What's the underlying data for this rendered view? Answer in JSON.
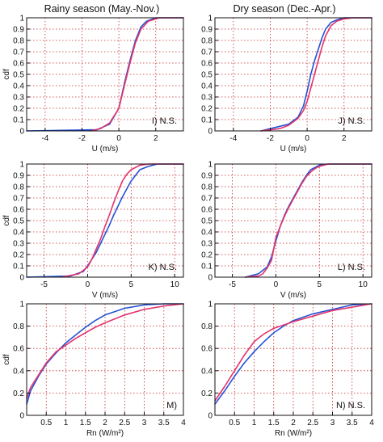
{
  "column_titles": [
    "Rainy season (May.-Nov.)",
    "Dry season (Dec.-Apr.)"
  ],
  "colors": {
    "blue_series": "#2452d6",
    "red_series": "#e2336b",
    "grid": "#c42a2a",
    "axis": "#111111"
  },
  "chart_data": [
    {
      "type": "line",
      "annotation": "I) N.S.",
      "xlabel": "U (m/s)",
      "ylabel": "cdf",
      "xlim": [
        -5,
        3.5
      ],
      "ylim": [
        0,
        1
      ],
      "xticks": [
        -4,
        -2,
        0,
        2
      ],
      "yticks": [
        0,
        0.1,
        0.2,
        0.3,
        0.4,
        0.5,
        0.6,
        0.7,
        0.8,
        0.9,
        1
      ],
      "grid": true,
      "series": [
        {
          "color": "blue",
          "x": [
            -5,
            -1.2,
            -0.5,
            0,
            0.3,
            0.6,
            0.9,
            1.2,
            1.5,
            2,
            3.5
          ],
          "y": [
            0,
            0.01,
            0.06,
            0.2,
            0.42,
            0.62,
            0.8,
            0.92,
            0.97,
            1,
            1
          ]
        },
        {
          "color": "red",
          "x": [
            -1.5,
            -1,
            -0.5,
            0,
            0.3,
            0.6,
            0.9,
            1.2,
            1.6,
            2.2,
            3.5
          ],
          "y": [
            0,
            0.02,
            0.07,
            0.2,
            0.4,
            0.6,
            0.78,
            0.9,
            0.97,
            1,
            1
          ]
        }
      ]
    },
    {
      "type": "line",
      "annotation": "J) N.S.",
      "xlabel": "U (m/s)",
      "ylabel": "",
      "xlim": [
        -5,
        3.5
      ],
      "ylim": [
        0,
        1
      ],
      "xticks": [
        -4,
        -2,
        0,
        2
      ],
      "yticks": [
        0,
        0.1,
        0.2,
        0.3,
        0.4,
        0.5,
        0.6,
        0.7,
        0.8,
        0.9,
        1
      ],
      "grid": true,
      "series": [
        {
          "color": "blue",
          "x": [
            -2.5,
            -2,
            -1,
            -0.5,
            -0.2,
            0,
            0.2,
            0.4,
            0.6,
            0.8,
            1,
            1.3,
            1.6,
            2,
            2.5,
            3.5
          ],
          "y": [
            0,
            0.02,
            0.06,
            0.12,
            0.22,
            0.35,
            0.5,
            0.62,
            0.72,
            0.82,
            0.9,
            0.96,
            0.98,
            1,
            1,
            1
          ]
        },
        {
          "color": "red",
          "x": [
            -2.5,
            -1.5,
            -1,
            -0.5,
            -0.2,
            0,
            0.2,
            0.4,
            0.6,
            0.8,
            1,
            1.3,
            1.6,
            2,
            2.5,
            3.5
          ],
          "y": [
            0,
            0.02,
            0.05,
            0.11,
            0.18,
            0.26,
            0.38,
            0.5,
            0.62,
            0.74,
            0.84,
            0.93,
            0.97,
            0.99,
            1,
            1
          ]
        }
      ]
    },
    {
      "type": "line",
      "annotation": "K) N.S.",
      "xlabel": "V (m/s)",
      "ylabel": "cdf",
      "xlim": [
        -7,
        11
      ],
      "ylim": [
        0,
        1
      ],
      "xticks": [
        -5,
        0,
        5,
        10
      ],
      "yticks": [
        0,
        0.1,
        0.2,
        0.3,
        0.4,
        0.5,
        0.6,
        0.7,
        0.8,
        0.9,
        1
      ],
      "grid": true,
      "series": [
        {
          "color": "blue",
          "x": [
            -7,
            -2,
            -0.5,
            0,
            0.5,
            1,
            1.5,
            2,
            2.5,
            3,
            3.5,
            4,
            4.5,
            5,
            5.5,
            6,
            7,
            8,
            11
          ],
          "y": [
            0,
            0.01,
            0.05,
            0.1,
            0.16,
            0.22,
            0.3,
            0.38,
            0.46,
            0.55,
            0.63,
            0.71,
            0.78,
            0.85,
            0.9,
            0.95,
            0.98,
            1,
            1
          ]
        },
        {
          "color": "red",
          "x": [
            -3,
            -1,
            0,
            0.5,
            1,
            1.5,
            2,
            2.5,
            3,
            3.5,
            4,
            4.5,
            5,
            6,
            7,
            11
          ],
          "y": [
            0,
            0.03,
            0.09,
            0.16,
            0.25,
            0.34,
            0.45,
            0.55,
            0.66,
            0.76,
            0.85,
            0.91,
            0.95,
            0.99,
            1,
            1
          ]
        }
      ]
    },
    {
      "type": "line",
      "annotation": "L) N.S.",
      "xlabel": "V (m/s)",
      "ylabel": "",
      "xlim": [
        -7,
        11
      ],
      "ylim": [
        0,
        1
      ],
      "xticks": [
        -5,
        0,
        5,
        10
      ],
      "yticks": [
        0,
        0.1,
        0.2,
        0.3,
        0.4,
        0.5,
        0.6,
        0.7,
        0.8,
        0.9,
        1
      ],
      "grid": true,
      "series": [
        {
          "color": "blue",
          "x": [
            -3.5,
            -2,
            -1,
            -0.5,
            0,
            0.5,
            1,
            1.5,
            2,
            2.5,
            3,
            3.5,
            4,
            5,
            6,
            11
          ],
          "y": [
            0,
            0.03,
            0.09,
            0.18,
            0.32,
            0.45,
            0.55,
            0.63,
            0.7,
            0.77,
            0.84,
            0.9,
            0.95,
            0.99,
            1,
            1
          ]
        },
        {
          "color": "red",
          "x": [
            -3.5,
            -2,
            -1.5,
            -1,
            -0.5,
            0,
            0.5,
            1,
            1.5,
            2,
            2.5,
            3,
            3.5,
            4,
            4.5,
            5,
            6,
            11
          ],
          "y": [
            0,
            0.01,
            0.03,
            0.08,
            0.15,
            0.35,
            0.45,
            0.54,
            0.62,
            0.69,
            0.76,
            0.83,
            0.89,
            0.93,
            0.96,
            0.98,
            1,
            1
          ]
        }
      ]
    },
    {
      "type": "line",
      "annotation": "M)",
      "xlabel": "Rn (W/m²)",
      "ylabel": "cdf",
      "xlim": [
        0,
        4
      ],
      "ylim": [
        0,
        1
      ],
      "xticks": [
        0.5,
        1,
        1.5,
        2,
        2.5,
        3,
        3.5,
        4
      ],
      "yticks": [
        0,
        0.2,
        0.4,
        0.6,
        0.8,
        1
      ],
      "grid": true,
      "series": [
        {
          "color": "blue",
          "x": [
            0,
            0.1,
            0.3,
            0.5,
            0.75,
            1,
            1.25,
            1.5,
            1.75,
            2,
            2.5,
            3,
            3.5,
            4
          ],
          "y": [
            0.1,
            0.22,
            0.35,
            0.46,
            0.56,
            0.65,
            0.72,
            0.79,
            0.85,
            0.9,
            0.96,
            0.99,
            1,
            1
          ]
        },
        {
          "color": "red",
          "x": [
            0,
            0.1,
            0.3,
            0.5,
            0.75,
            1,
            1.25,
            1.5,
            1.75,
            2,
            2.5,
            3,
            3.5,
            4
          ],
          "y": [
            0.15,
            0.25,
            0.36,
            0.47,
            0.57,
            0.63,
            0.69,
            0.74,
            0.79,
            0.83,
            0.9,
            0.95,
            0.98,
            1
          ]
        }
      ]
    },
    {
      "type": "line",
      "annotation": "N) N.S.",
      "xlabel": "Rn (W/m²)",
      "ylabel": "",
      "xlim": [
        0,
        4
      ],
      "ylim": [
        0,
        1
      ],
      "xticks": [
        0.5,
        1,
        1.5,
        2,
        2.5,
        3,
        3.5,
        4
      ],
      "yticks": [
        0,
        0.2,
        0.4,
        0.6,
        0.8,
        1
      ],
      "grid": true,
      "series": [
        {
          "color": "blue",
          "x": [
            0,
            0.25,
            0.5,
            0.75,
            1,
            1.25,
            1.5,
            1.75,
            2,
            2.5,
            3,
            3.5,
            4
          ],
          "y": [
            0.1,
            0.22,
            0.35,
            0.47,
            0.57,
            0.66,
            0.74,
            0.8,
            0.85,
            0.91,
            0.95,
            0.99,
            1
          ]
        },
        {
          "color": "red",
          "x": [
            0,
            0.25,
            0.5,
            0.75,
            1,
            1.25,
            1.5,
            1.75,
            2,
            2.5,
            3,
            3.5,
            4
          ],
          "y": [
            0.13,
            0.26,
            0.4,
            0.54,
            0.66,
            0.73,
            0.78,
            0.81,
            0.84,
            0.89,
            0.94,
            0.97,
            1
          ]
        }
      ]
    }
  ]
}
